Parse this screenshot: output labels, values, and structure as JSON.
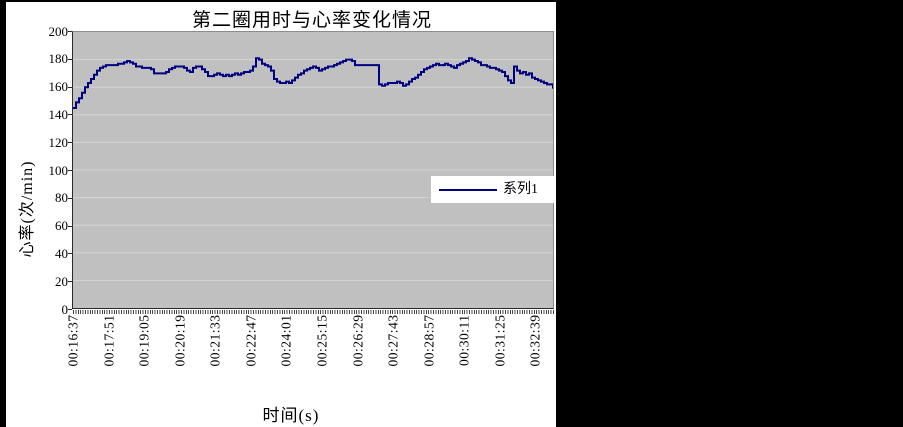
{
  "chart_title": "第二圈用时与心率变化情况",
  "x_axis": {
    "title": "时间(s)",
    "tick_labels": [
      "00:16:37",
      "00:17:51",
      "00:19:05",
      "00:20:19",
      "00:21:33",
      "00:22:47",
      "00:24:01",
      "00:25:15",
      "00:26:29",
      "00:27:43",
      "00:28:57",
      "00:30:11",
      "00:31:25",
      "00:32:39"
    ]
  },
  "y_axis": {
    "title": "心率(次/min)",
    "tick_labels": [
      "0",
      "20",
      "40",
      "60",
      "80",
      "100",
      "120",
      "140",
      "160",
      "180",
      "200"
    ]
  },
  "legend": {
    "series_label": "系列1"
  },
  "colors": {
    "series_line": "#000080",
    "plot_background": "#c0c0c0",
    "gridline": "#d4d4d4",
    "chart_background": "#ffffff",
    "page_background": "#000000",
    "text": "#000000"
  },
  "chart_data": {
    "type": "line",
    "title": "第二圈用时与心率变化情况",
    "xlabel": "时间(s)",
    "ylabel": "心率(次/min)",
    "ylim": [
      0,
      200
    ],
    "ytick_step": 20,
    "yticks": [
      0,
      20,
      40,
      60,
      80,
      100,
      120,
      140,
      160,
      180,
      200
    ],
    "x_tick_labels": [
      "00:16:37",
      "00:17:51",
      "00:19:05",
      "00:20:19",
      "00:21:33",
      "00:22:47",
      "00:24:01",
      "00:25:15",
      "00:26:29",
      "00:27:43",
      "00:28:57",
      "00:30:11",
      "00:31:25",
      "00:32:39"
    ],
    "grid": "horizontal",
    "legend_entries": [
      "系列1"
    ],
    "legend_position": "center-right",
    "series": [
      {
        "name": "系列1",
        "color": "#000080",
        "unit": "次/min",
        "values": [
          145,
          149,
          152,
          156,
          160,
          163,
          166,
          169,
          172,
          174,
          175,
          176,
          176,
          176,
          176,
          177,
          177,
          178,
          179,
          178,
          177,
          175,
          175,
          174,
          174,
          174,
          173,
          170,
          170,
          170,
          170,
          171,
          173,
          174,
          175,
          175,
          175,
          174,
          172,
          171,
          174,
          175,
          175,
          173,
          171,
          168,
          168,
          169,
          170,
          169,
          168,
          169,
          168,
          169,
          170,
          169,
          170,
          171,
          171,
          172,
          175,
          181,
          180,
          177,
          176,
          175,
          172,
          166,
          164,
          163,
          163,
          164,
          163,
          165,
          167,
          169,
          170,
          172,
          173,
          174,
          175,
          174,
          172,
          173,
          174,
          175,
          175,
          176,
          177,
          178,
          179,
          180,
          180,
          179,
          176,
          176,
          176,
          176,
          176,
          176,
          176,
          176,
          162,
          161,
          162,
          163,
          163,
          163,
          164,
          163,
          161,
          162,
          164,
          166,
          167,
          169,
          171,
          173,
          174,
          175,
          176,
          177,
          176,
          176,
          177,
          176,
          175,
          174,
          176,
          177,
          178,
          179,
          181,
          180,
          179,
          178,
          176,
          176,
          175,
          174,
          174,
          173,
          172,
          171,
          168,
          165,
          163,
          175,
          172,
          170,
          171,
          169,
          170,
          167,
          166,
          165,
          164,
          163,
          162,
          162,
          159
        ]
      }
    ]
  }
}
